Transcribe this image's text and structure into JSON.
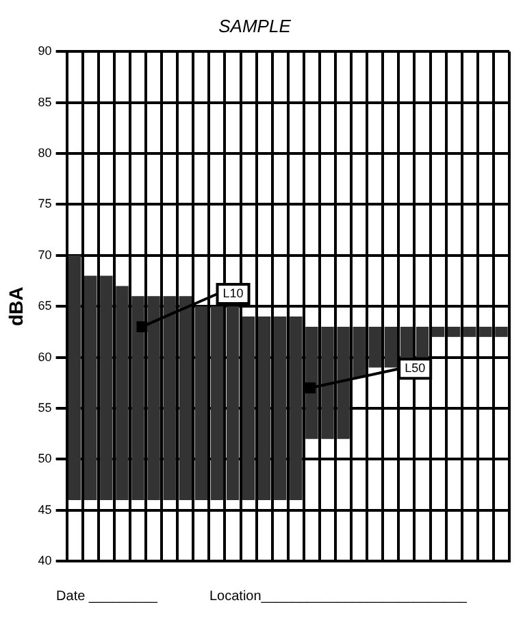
{
  "chart_data": {
    "type": "bar",
    "title": "SAMPLE",
    "ylabel": "dBA",
    "categories": [
      null,
      null,
      null,
      null,
      null,
      null,
      null,
      null,
      null,
      null,
      null,
      null,
      null,
      null,
      null,
      null,
      null,
      null,
      null,
      null,
      null,
      null,
      null,
      null,
      null,
      null,
      null,
      null
    ],
    "base": [
      46,
      46,
      46,
      46,
      46,
      46,
      46,
      46,
      46,
      46,
      46,
      46,
      46,
      46,
      46,
      52,
      52,
      52,
      58,
      59,
      59,
      59,
      60,
      62,
      62,
      62,
      62,
      62
    ],
    "values": [
      24,
      22,
      22,
      21,
      20,
      20,
      20,
      20,
      19,
      19,
      19,
      18,
      18,
      18,
      18,
      11,
      11,
      11,
      5,
      4,
      4,
      4,
      3,
      1,
      1,
      1,
      1,
      1
    ],
    "color": "#333333",
    "ylim": [
      40,
      90
    ],
    "yticks": [
      40,
      45,
      50,
      55,
      60,
      65,
      70,
      75,
      80,
      85,
      90
    ],
    "grid": true,
    "annotations": [
      {
        "text": "L10",
        "y": 63
      },
      "L50",
      "Date _________",
      "Location___________________________"
    ]
  }
}
